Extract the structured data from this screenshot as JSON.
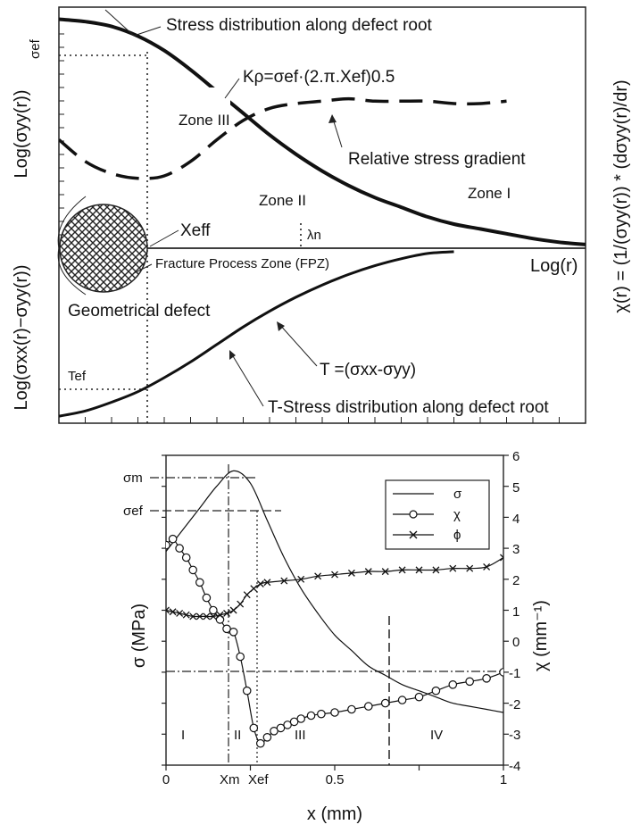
{
  "chart_data": [
    {
      "type": "line",
      "xlabel": "Log(r)",
      "ylabel_upper_left": "Log(σyy(r))",
      "ylabel_lower_left": "Log(σxx(r)−σyy(r))",
      "ylabel_right": "χ(r) = (1/(σyy(r)) * (dσyy(r)/dr)",
      "sigma_ef_label": "σef",
      "t_ef_label": "Tef",
      "x_eff_label": "Xeff",
      "lambda_label": "λn",
      "zones": [
        "Zone III",
        "Zone II",
        "Zone I"
      ],
      "annotations": {
        "stress_distribution": "Stress distribution along defect root",
        "k_formula": "Kρ=σef·(2.π.Xef)0.5",
        "relative_gradient": "Relative stress gradient",
        "fpz": "Fracture Process Zone (FPZ)",
        "geometrical_defect": "Geometrical defect",
        "t_formula": "T =(σxx-σyy)",
        "t_stress": "T-Stress distribution along defect root"
      },
      "series": [
        {
          "name": "",
          "style": "solid",
          "x": [
            0.0,
            0.05,
            0.1,
            0.15,
            0.2,
            0.25,
            0.3,
            0.35,
            0.4,
            0.45,
            0.5,
            0.55,
            0.6,
            0.65,
            0.7,
            0.75,
            0.8,
            0.85,
            0.9,
            0.95,
            1.0
          ],
          "y": [
            0.95,
            0.94,
            0.92,
            0.88,
            0.82,
            0.74,
            0.65,
            0.56,
            0.47,
            0.39,
            0.32,
            0.26,
            0.21,
            0.17,
            0.13,
            0.1,
            0.08,
            0.06,
            0.04,
            0.025,
            0.015
          ]
        },
        {
          "name": "",
          "style": "dashed",
          "x": [
            0.0,
            0.05,
            0.1,
            0.15,
            0.2,
            0.25,
            0.3,
            0.35,
            0.4,
            0.45,
            0.5,
            0.55,
            0.6,
            0.65,
            0.7,
            0.75,
            0.8,
            0.85
          ],
          "y": [
            0.45,
            0.36,
            0.31,
            0.29,
            0.3,
            0.36,
            0.45,
            0.53,
            0.58,
            0.6,
            0.61,
            0.62,
            0.61,
            0.61,
            0.61,
            0.6,
            0.6,
            0.61
          ]
        },
        {
          "name": "",
          "style": "solid",
          "x": [
            0.0,
            0.05,
            0.1,
            0.15,
            0.2,
            0.25,
            0.3,
            0.35,
            0.4,
            0.45,
            0.5,
            0.55,
            0.6,
            0.65,
            0.7,
            0.75
          ],
          "y": [
            0.04,
            0.07,
            0.12,
            0.18,
            0.26,
            0.35,
            0.45,
            0.55,
            0.64,
            0.72,
            0.79,
            0.85,
            0.9,
            0.94,
            0.97,
            0.98
          ]
        }
      ]
    },
    {
      "type": "line",
      "xlabel": "x (mm)",
      "ylabel": "σ (MPa)",
      "y2label": "χ (mm⁻¹)",
      "xlim": [
        0,
        1
      ],
      "y2lim": [
        -4,
        6
      ],
      "xticks": [
        "0",
        "0.5",
        "1"
      ],
      "xm_label": "Xm",
      "xef_label": "Xef",
      "sigma_m_label": "σm",
      "sigma_ef_label": "σef",
      "y2ticks": [
        "6",
        "5",
        "4",
        "3",
        "2",
        "1",
        "0",
        "-1",
        "-2",
        "-3",
        "-4"
      ],
      "zones": [
        "I",
        "II",
        "III",
        "IV"
      ],
      "legend_position": "top-right",
      "legend": [
        "σ",
        "χ",
        "ϕ"
      ],
      "series": [
        {
          "name": "σ",
          "marker": "none",
          "x": [
            0.0,
            0.05,
            0.1,
            0.15,
            0.2,
            0.25,
            0.3,
            0.35,
            0.4,
            0.45,
            0.5,
            0.55,
            0.6,
            0.65,
            0.7,
            0.75,
            0.8,
            0.85,
            0.9,
            0.95,
            1.0
          ],
          "y": [
            2.9,
            3.6,
            4.3,
            5.0,
            5.5,
            5.1,
            3.9,
            2.7,
            1.7,
            0.9,
            0.2,
            -0.3,
            -0.8,
            -1.1,
            -1.4,
            -1.6,
            -1.8,
            -2.0,
            -2.1,
            -2.2,
            -2.3
          ]
        },
        {
          "name": "χ",
          "marker": "circle",
          "x": [
            0.0,
            0.02,
            0.04,
            0.06,
            0.08,
            0.1,
            0.12,
            0.14,
            0.16,
            0.18,
            0.2,
            0.22,
            0.24,
            0.26,
            0.28,
            0.3,
            0.32,
            0.34,
            0.36,
            0.38,
            0.4,
            0.43,
            0.46,
            0.5,
            0.55,
            0.6,
            0.65,
            0.7,
            0.75,
            0.8,
            0.85,
            0.9,
            0.95,
            1.0
          ],
          "y": [
            3.1,
            3.3,
            3.0,
            2.7,
            2.3,
            1.9,
            1.4,
            1.0,
            0.7,
            0.4,
            0.3,
            -0.5,
            -1.6,
            -2.8,
            -3.3,
            -3.1,
            -2.9,
            -2.8,
            -2.7,
            -2.6,
            -2.5,
            -2.4,
            -2.35,
            -2.3,
            -2.2,
            -2.1,
            -2.0,
            -1.9,
            -1.8,
            -1.6,
            -1.4,
            -1.3,
            -1.2,
            -1.0
          ]
        },
        {
          "name": "ϕ",
          "marker": "x",
          "x": [
            0.0,
            0.02,
            0.04,
            0.06,
            0.08,
            0.1,
            0.12,
            0.14,
            0.16,
            0.18,
            0.2,
            0.22,
            0.24,
            0.26,
            0.28,
            0.3,
            0.35,
            0.4,
            0.45,
            0.5,
            0.55,
            0.6,
            0.65,
            0.7,
            0.75,
            0.8,
            0.85,
            0.9,
            0.95,
            1.0
          ],
          "y": [
            1.0,
            0.95,
            0.9,
            0.85,
            0.8,
            0.8,
            0.8,
            0.8,
            0.85,
            0.9,
            1.0,
            1.2,
            1.5,
            1.7,
            1.85,
            1.9,
            1.95,
            2.0,
            2.1,
            2.15,
            2.2,
            2.25,
            2.25,
            2.3,
            2.3,
            2.3,
            2.35,
            2.35,
            2.4,
            2.7
          ]
        }
      ]
    }
  ]
}
